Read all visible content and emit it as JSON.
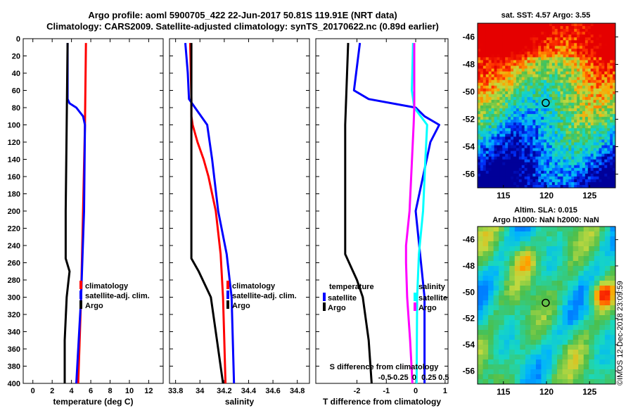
{
  "header": {
    "line1": "Argo profile: aoml 5900705_422 22-Jun-2017 50.81S 119.91E (NRT data)",
    "line2": "Climatology: CARS2009. Satellite-adjusted climatology: synTS_20170622.nc (0.89d earlier)"
  },
  "credit": "©IMOS 12-Dec-2018 23:09:59",
  "colors": {
    "argo": "#000000",
    "climatology": "#ff0000",
    "satellite": "#0000ff",
    "salinity_diff": "#ff00ff",
    "salinity_sat": "#00ffff"
  },
  "chart_data": [
    {
      "type": "line",
      "name": "temperature-panel",
      "xlabel": "temperature (deg C)",
      "xlim": [
        -1,
        13.5
      ],
      "ylim": [
        400,
        0
      ],
      "xticks": [
        "0",
        "2",
        "4",
        "6",
        "8",
        "10",
        "12"
      ],
      "yticks": [
        "0",
        "20",
        "40",
        "60",
        "80",
        "100",
        "120",
        "140",
        "160",
        "180",
        "200",
        "220",
        "240",
        "260",
        "280",
        "300",
        "320",
        "340",
        "360",
        "380",
        "400"
      ],
      "legend": [
        "climatology",
        "satellite-adj. clim.",
        "Argo"
      ],
      "series": [
        {
          "name": "climatology",
          "color": "#ff0000",
          "depth": [
            5,
            100,
            200,
            300,
            400
          ],
          "values": [
            5.5,
            5.4,
            5.2,
            5.0,
            4.7
          ]
        },
        {
          "name": "satellite-adj. clim.",
          "color": "#0000ff",
          "depth": [
            5,
            70,
            75,
            80,
            90,
            100,
            200,
            300,
            400
          ],
          "values": [
            3.6,
            3.6,
            3.8,
            4.5,
            5.2,
            5.4,
            5.3,
            5.0,
            4.5
          ]
        },
        {
          "name": "Argo",
          "color": "#000000",
          "depth": [
            5,
            100,
            200,
            255,
            270,
            280,
            300,
            350,
            400
          ],
          "values": [
            3.6,
            3.5,
            3.4,
            3.4,
            3.8,
            3.7,
            3.5,
            3.3,
            3.3
          ]
        }
      ]
    },
    {
      "type": "line",
      "name": "salinity-panel",
      "xlabel": "salinity",
      "xlim": [
        33.75,
        34.9
      ],
      "ylim": [
        400,
        0
      ],
      "xticks": [
        "33.8",
        "34",
        "34.2",
        "34.4",
        "34.6",
        "34.8"
      ],
      "legend": [
        "climatology",
        "satellite-adj. clim.",
        "Argo"
      ],
      "series": [
        {
          "name": "climatology",
          "color": "#ff0000",
          "depth": [
            5,
            70,
            80,
            90,
            100,
            120,
            140,
            160,
            200,
            250,
            300,
            350,
            400
          ],
          "values": [
            33.92,
            33.93,
            33.93,
            33.93,
            33.94,
            33.98,
            34.03,
            34.07,
            34.13,
            34.17,
            34.19,
            34.2,
            34.21
          ]
        },
        {
          "name": "satellite-adj. clim.",
          "color": "#0000ff",
          "depth": [
            5,
            40,
            70,
            80,
            100,
            140,
            200,
            250,
            300,
            400
          ],
          "values": [
            33.88,
            33.9,
            33.91,
            33.96,
            34.06,
            34.1,
            34.15,
            34.22,
            34.26,
            34.28
          ]
        },
        {
          "name": "Argo",
          "color": "#000000",
          "depth": [
            5,
            80,
            100,
            200,
            255,
            270,
            300,
            350,
            400
          ],
          "values": [
            33.93,
            33.93,
            33.93,
            33.93,
            33.93,
            33.99,
            34.09,
            34.14,
            34.19
          ]
        }
      ]
    },
    {
      "type": "line",
      "name": "difference-panel",
      "xlabel": "T difference from climatology",
      "xlabel_top": "S difference from climatology",
      "xlim": [
        -3.4,
        1.1
      ],
      "ylim": [
        400,
        0
      ],
      "xticks": [
        "-2",
        "-1",
        "0",
        "1"
      ],
      "xticks_top": [
        "-0.5",
        "-0.25",
        "0",
        "0.25",
        "0.5"
      ],
      "legend": {
        "temperature_title": "temperature",
        "salinity_title": "salinity",
        "satellite": "satellite",
        "argo": "Argo"
      },
      "series": [
        {
          "name": "temperature satellite",
          "color": "#0000ff",
          "depth": [
            5,
            60,
            70,
            80,
            90,
            100,
            120,
            200,
            300,
            400
          ],
          "values": [
            -1.9,
            -2.1,
            -1.6,
            0.0,
            0.3,
            0.8,
            0.5,
            0.0,
            0.3,
            0.3
          ]
        },
        {
          "name": "temperature Argo",
          "color": "#000000",
          "depth": [
            5,
            100,
            200,
            250,
            280,
            300,
            350,
            400
          ],
          "values": [
            -2.3,
            -2.4,
            -2.4,
            -2.4,
            -2.0,
            -1.8,
            -1.6,
            -1.5
          ]
        },
        {
          "name": "salinity satellite",
          "color": "#00ffff",
          "depth": [
            5,
            60,
            80,
            100,
            140,
            200,
            250,
            300,
            400
          ],
          "values": [
            -0.02,
            -0.04,
            0.0,
            0.22,
            0.19,
            0.15,
            0.08,
            0.05,
            0.04
          ]
        },
        {
          "name": "salinity Argo",
          "color": "#ff00ff",
          "depth": [
            5,
            80,
            100,
            200,
            240,
            260,
            300,
            350,
            400
          ],
          "values": [
            0.0,
            0.0,
            -0.01,
            -0.08,
            -0.14,
            -0.14,
            -0.12,
            -0.07,
            -0.03
          ]
        }
      ]
    },
    {
      "type": "heatmap",
      "name": "sst-map",
      "title": "sat. SST: 4.57 Argo: 3.55",
      "xticks": [
        "115",
        "120",
        "125"
      ],
      "yticks": [
        "-46",
        "-48",
        "-50",
        "-52",
        "-54",
        "-56"
      ],
      "marker": {
        "lon": 119.91,
        "lat": -50.81
      }
    },
    {
      "type": "heatmap",
      "name": "sla-map",
      "title1": "Altim. SLA: 0.015",
      "title2": "Argo h1000: NaN h2000: NaN",
      "xticks": [
        "115",
        "120",
        "125"
      ],
      "yticks": [
        "-46",
        "-48",
        "-50",
        "-52",
        "-54",
        "-56"
      ],
      "marker": {
        "lon": 119.91,
        "lat": -50.81
      }
    }
  ]
}
